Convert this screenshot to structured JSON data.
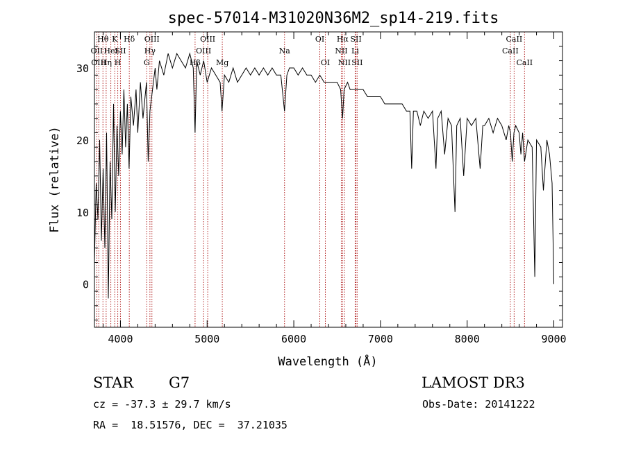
{
  "chart_data": {
    "type": "line",
    "title": "spec-57014-M31020N36M2_sp14-219.fits",
    "xlabel": "Wavelength (Å)",
    "ylabel": "Flux (relative)",
    "xlim": [
      3700,
      9100
    ],
    "ylim": [
      -6,
      35
    ],
    "xticks": [
      4000,
      5000,
      6000,
      7000,
      8000,
      9000
    ],
    "yticks": [
      0,
      10,
      20,
      30
    ],
    "grid": false,
    "series": [
      {
        "values": [
          [
            3700,
            3
          ],
          [
            3720,
            14
          ],
          [
            3740,
            9
          ],
          [
            3760,
            20
          ],
          [
            3780,
            6
          ],
          [
            3800,
            16
          ],
          [
            3820,
            5
          ],
          [
            3840,
            21
          ],
          [
            3860,
            -2
          ],
          [
            3880,
            17
          ],
          [
            3900,
            9
          ],
          [
            3920,
            25
          ],
          [
            3940,
            10
          ],
          [
            3960,
            22
          ],
          [
            3980,
            15
          ],
          [
            4000,
            24
          ],
          [
            4020,
            18
          ],
          [
            4040,
            27
          ],
          [
            4060,
            19
          ],
          [
            4080,
            25
          ],
          [
            4100,
            16
          ],
          [
            4120,
            26
          ],
          [
            4150,
            22
          ],
          [
            4180,
            27
          ],
          [
            4200,
            21
          ],
          [
            4230,
            28
          ],
          [
            4260,
            23
          ],
          [
            4300,
            28
          ],
          [
            4320,
            17
          ],
          [
            4340,
            24
          ],
          [
            4360,
            26
          ],
          [
            4400,
            30
          ],
          [
            4420,
            27
          ],
          [
            4450,
            31
          ],
          [
            4500,
            29
          ],
          [
            4550,
            32
          ],
          [
            4600,
            30
          ],
          [
            4650,
            32
          ],
          [
            4700,
            31
          ],
          [
            4750,
            30
          ],
          [
            4800,
            32
          ],
          [
            4840,
            30
          ],
          [
            4861,
            21
          ],
          [
            4880,
            31
          ],
          [
            4920,
            29
          ],
          [
            4960,
            31
          ],
          [
            5000,
            28
          ],
          [
            5050,
            30
          ],
          [
            5100,
            29
          ],
          [
            5150,
            28
          ],
          [
            5172,
            24
          ],
          [
            5200,
            29
          ],
          [
            5250,
            28
          ],
          [
            5300,
            30
          ],
          [
            5350,
            28
          ],
          [
            5400,
            29
          ],
          [
            5450,
            30
          ],
          [
            5500,
            29
          ],
          [
            5550,
            30
          ],
          [
            5600,
            29
          ],
          [
            5650,
            30
          ],
          [
            5700,
            29
          ],
          [
            5750,
            30
          ],
          [
            5800,
            29
          ],
          [
            5850,
            29
          ],
          [
            5893,
            24
          ],
          [
            5920,
            29
          ],
          [
            5950,
            30
          ],
          [
            6000,
            30
          ],
          [
            6050,
            29
          ],
          [
            6100,
            30
          ],
          [
            6150,
            29
          ],
          [
            6200,
            29
          ],
          [
            6250,
            28
          ],
          [
            6300,
            29
          ],
          [
            6350,
            28
          ],
          [
            6400,
            28
          ],
          [
            6450,
            28
          ],
          [
            6500,
            28
          ],
          [
            6540,
            27
          ],
          [
            6563,
            23
          ],
          [
            6580,
            27
          ],
          [
            6620,
            28
          ],
          [
            6650,
            27
          ],
          [
            6700,
            27
          ],
          [
            6750,
            27
          ],
          [
            6800,
            27
          ],
          [
            6850,
            26
          ],
          [
            6900,
            26
          ],
          [
            6950,
            26
          ],
          [
            7000,
            26
          ],
          [
            7050,
            25
          ],
          [
            7100,
            25
          ],
          [
            7150,
            25
          ],
          [
            7200,
            25
          ],
          [
            7250,
            25
          ],
          [
            7300,
            24
          ],
          [
            7340,
            24
          ],
          [
            7360,
            16
          ],
          [
            7380,
            24
          ],
          [
            7420,
            24
          ],
          [
            7460,
            22
          ],
          [
            7500,
            24
          ],
          [
            7550,
            23
          ],
          [
            7600,
            24
          ],
          [
            7640,
            16
          ],
          [
            7660,
            23
          ],
          [
            7700,
            24
          ],
          [
            7740,
            18
          ],
          [
            7780,
            23
          ],
          [
            7820,
            22
          ],
          [
            7860,
            10
          ],
          [
            7880,
            22
          ],
          [
            7920,
            23
          ],
          [
            7960,
            15
          ],
          [
            8000,
            23
          ],
          [
            8050,
            22
          ],
          [
            8100,
            23
          ],
          [
            8150,
            16
          ],
          [
            8180,
            22
          ],
          [
            8200,
            22
          ],
          [
            8250,
            23
          ],
          [
            8300,
            21
          ],
          [
            8350,
            23
          ],
          [
            8400,
            22
          ],
          [
            8450,
            20
          ],
          [
            8480,
            22
          ],
          [
            8500,
            21
          ],
          [
            8520,
            17
          ],
          [
            8540,
            21
          ],
          [
            8560,
            22
          ],
          [
            8600,
            21
          ],
          [
            8620,
            18
          ],
          [
            8640,
            21
          ],
          [
            8662,
            17
          ],
          [
            8700,
            20
          ],
          [
            8750,
            19
          ],
          [
            8780,
            1
          ],
          [
            8800,
            20
          ],
          [
            8850,
            19
          ],
          [
            8880,
            13
          ],
          [
            8920,
            20
          ],
          [
            8950,
            18
          ],
          [
            8980,
            14
          ],
          [
            9000,
            0
          ]
        ]
      }
    ],
    "lines": [
      {
        "wl": 3727,
        "label": "OII",
        "row": 1
      },
      {
        "wl": 3750,
        "label": "OIII",
        "row": 2
      },
      {
        "wl": 3798,
        "label": "Hθ",
        "row": 0
      },
      {
        "wl": 3835,
        "label": "Hη",
        "row": 2
      },
      {
        "wl": 3889,
        "label": "HeI",
        "row": 1
      },
      {
        "wl": 3934,
        "label": "K",
        "row": 0
      },
      {
        "wl": 3969,
        "label": "H",
        "row": 2
      },
      {
        "wl": 4000,
        "label": "SII",
        "row": 1
      },
      {
        "wl": 4102,
        "label": "Hδ",
        "row": 0
      },
      {
        "wl": 4303,
        "label": "G",
        "row": 2
      },
      {
        "wl": 4340,
        "label": "Hγ",
        "row": 1
      },
      {
        "wl": 4363,
        "label": "OIII",
        "row": 0
      },
      {
        "wl": 4861,
        "label": "Hβ",
        "row": 2
      },
      {
        "wl": 4959,
        "label": "OIII",
        "row": 1
      },
      {
        "wl": 5007,
        "label": "OIII",
        "row": 0
      },
      {
        "wl": 5175,
        "label": "Mg",
        "row": 2
      },
      {
        "wl": 5893,
        "label": "Na",
        "row": 1
      },
      {
        "wl": 6300,
        "label": "OI",
        "row": 0
      },
      {
        "wl": 6364,
        "label": "OI",
        "row": 2
      },
      {
        "wl": 6548,
        "label": "NII",
        "row": 1
      },
      {
        "wl": 6563,
        "label": "Hα",
        "row": 0
      },
      {
        "wl": 6584,
        "label": "NII",
        "row": 2
      },
      {
        "wl": 6708,
        "label": "Li",
        "row": 1
      },
      {
        "wl": 6717,
        "label": "SII",
        "row": 0
      },
      {
        "wl": 6731,
        "label": "SII",
        "row": 2
      },
      {
        "wl": 8498,
        "label": "CaII",
        "row": 1
      },
      {
        "wl": 8542,
        "label": "CaII",
        "row": 0
      },
      {
        "wl": 8662,
        "label": "CaII",
        "row": 2
      }
    ]
  },
  "info": {
    "class": "STAR",
    "subclass": "G7",
    "survey": "LAMOST DR3",
    "cz": "cz = -37.3 ± 29.7 km/s",
    "obs_date": "Obs-Date: 20141222",
    "coords": "RA =  18.51576, DEC =  37.21035"
  },
  "colors": {
    "spectrum": "#000000",
    "line_marker": "#b22222"
  }
}
